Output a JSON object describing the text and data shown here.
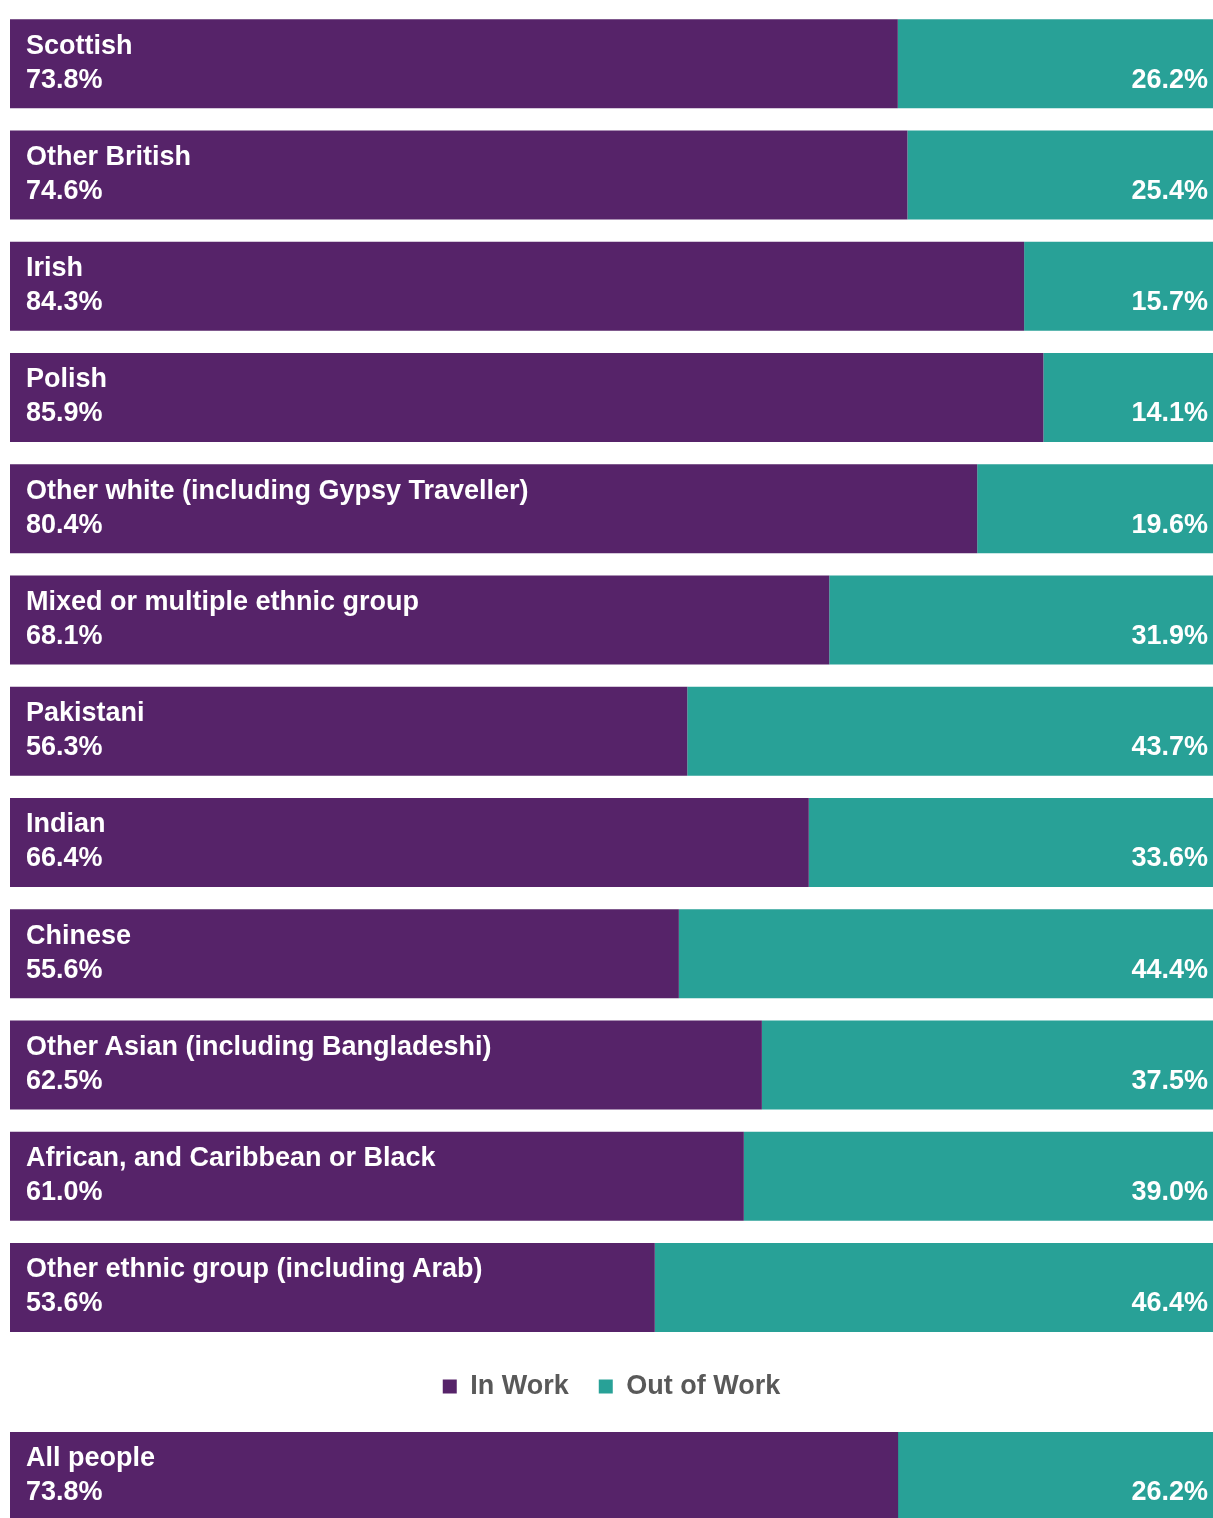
{
  "chart_data": [
    {
      "type": "bar",
      "orientation": "horizontal",
      "stacked": true,
      "categories": [
        "Scottish",
        "Other British",
        "Irish",
        "Polish",
        "Other white (including Gypsy Traveller)",
        "Mixed or multiple ethnic group",
        "Pakistani",
        "Indian",
        "Chinese",
        "Other Asian (including Bangladeshi)",
        "African, and Caribbean or Black",
        "Other ethnic group (including Arab)"
      ],
      "series": [
        {
          "name": "In Work",
          "color": "#562369",
          "values": [
            73.8,
            74.6,
            84.3,
            85.9,
            80.4,
            68.1,
            56.3,
            66.4,
            55.6,
            62.5,
            61.0,
            53.6
          ],
          "value_labels": [
            "73.8%",
            "74.6%",
            "84.3%",
            "85.9%",
            "80.4%",
            "68.1%",
            "56.3%",
            "66.4%",
            "55.6%",
            "62.5%",
            "61.0%",
            "53.6%"
          ]
        },
        {
          "name": "Out of Work",
          "color": "#28a197",
          "values": [
            26.2,
            25.4,
            15.7,
            14.1,
            19.6,
            31.9,
            43.7,
            33.6,
            44.4,
            37.5,
            39.0,
            46.4
          ],
          "value_labels": [
            "26.2%",
            "25.4%",
            "15.7%",
            "14.1%",
            "19.6%",
            "31.9%",
            "43.7%",
            "33.6%",
            "44.4%",
            "37.5%",
            "39.0%",
            "46.4%"
          ]
        }
      ],
      "xlim": [
        0,
        100
      ],
      "legend": "bottom",
      "grid": false,
      "tick_labels": false
    },
    {
      "type": "bar",
      "orientation": "horizontal",
      "stacked": true,
      "categories": [
        "All people"
      ],
      "series": [
        {
          "color": "#562369",
          "values": [
            73.8
          ],
          "value_labels": [
            "73.8%"
          ]
        },
        {
          "color": "#28a197",
          "values": [
            26.2
          ],
          "value_labels": [
            "26.2%"
          ]
        }
      ],
      "xlim": [
        0,
        100
      ],
      "grid": false,
      "tick_labels": false
    }
  ]
}
